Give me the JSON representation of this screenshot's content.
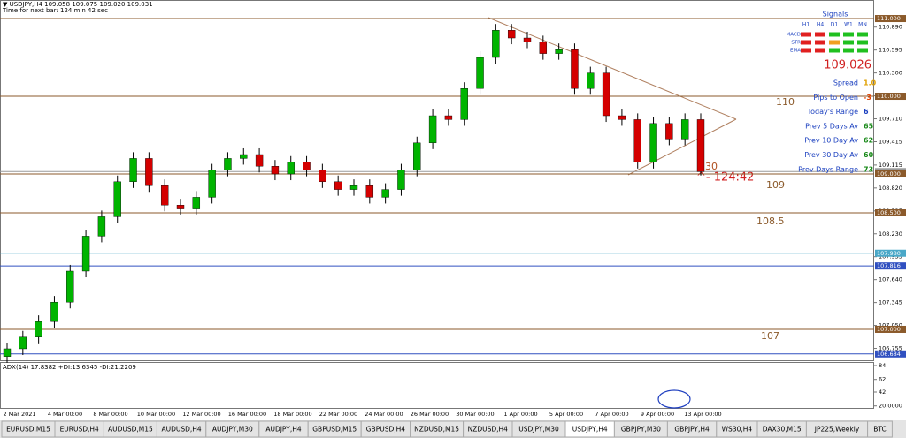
{
  "header": {
    "symbol_line": "▼ USDJPY,H4  109.058 109.075 109.020 109.031",
    "timer": "Time for next bar: 124 min 42 sec"
  },
  "chart": {
    "type": "candlestick",
    "ylim": [
      106.602,
      111.239
    ],
    "yticks": [
      {
        "value": 110.89,
        "label": "110.890"
      },
      {
        "value": 110.595,
        "label": "110.595"
      },
      {
        "value": 110.3,
        "label": "110.300"
      },
      {
        "value": 110.005,
        "label": "110.005"
      },
      {
        "value": 109.71,
        "label": "109.710"
      },
      {
        "value": 109.415,
        "label": "109.415"
      },
      {
        "value": 109.115,
        "label": "109.115"
      },
      {
        "value": 108.82,
        "label": "108.820"
      },
      {
        "value": 108.525,
        "label": "108.525"
      },
      {
        "value": 108.23,
        "label": "108.230"
      },
      {
        "value": 107.935,
        "label": "107.935"
      },
      {
        "value": 107.64,
        "label": "107.640"
      },
      {
        "value": 107.345,
        "label": "107.345"
      },
      {
        "value": 107.05,
        "label": "107.050"
      },
      {
        "value": 106.755,
        "label": "106.755"
      }
    ],
    "levels": [
      {
        "value": 111,
        "label": "111.000",
        "color": "#8b5a2b"
      },
      {
        "value": 110,
        "label": "110.000",
        "color": "#8b5a2b"
      },
      {
        "value": 109.031,
        "label": "109.031",
        "color": "#9a9a9a"
      },
      {
        "value": 109,
        "label": "109.000",
        "color": "#8b5a2b"
      },
      {
        "value": 108.5,
        "label": "108.500",
        "color": "#8b5a2b"
      },
      {
        "value": 107.98,
        "label": "107.980",
        "color": "#4aa8c8"
      },
      {
        "value": 107.816,
        "label": "107.816",
        "color": "#3050c0"
      },
      {
        "value": 107,
        "label": "107.000",
        "color": "#8b5a2b"
      },
      {
        "value": 106.684,
        "label": "106.684",
        "color": "#3050c0"
      }
    ],
    "level_notes": [
      "110",
      "109",
      "108.5",
      "107"
    ],
    "countdown": {
      "seconds": "30",
      "timer": "^- 124:42"
    },
    "up_color": "#00b400",
    "down_color": "#d40000",
    "candles": [
      [
        106.65,
        106.83,
        106.57,
        106.75
      ],
      [
        106.75,
        106.98,
        106.67,
        106.9
      ],
      [
        106.9,
        107.18,
        106.82,
        107.1
      ],
      [
        107.1,
        107.43,
        107.02,
        107.35
      ],
      [
        107.35,
        107.83,
        107.27,
        107.75
      ],
      [
        107.75,
        108.28,
        107.67,
        108.2
      ],
      [
        108.2,
        108.53,
        108.12,
        108.45
      ],
      [
        108.45,
        108.98,
        108.37,
        108.9
      ],
      [
        108.9,
        109.28,
        108.82,
        109.2
      ],
      [
        109.2,
        109.28,
        108.77,
        108.85
      ],
      [
        108.85,
        108.93,
        108.52,
        108.6
      ],
      [
        108.6,
        108.68,
        108.47,
        108.55
      ],
      [
        108.55,
        108.78,
        108.47,
        108.7
      ],
      [
        108.7,
        109.13,
        108.62,
        109.05
      ],
      [
        109.05,
        109.28,
        108.97,
        109.2
      ],
      [
        109.2,
        109.33,
        109.12,
        109.25
      ],
      [
        109.25,
        109.33,
        109.02,
        109.1
      ],
      [
        109.1,
        109.18,
        108.92,
        109
      ],
      [
        109,
        109.23,
        108.92,
        109.15
      ],
      [
        109.15,
        109.23,
        108.97,
        109.05
      ],
      [
        109.05,
        109.13,
        108.82,
        108.9
      ],
      [
        108.9,
        108.98,
        108.72,
        108.8
      ],
      [
        108.8,
        108.93,
        108.72,
        108.85
      ],
      [
        108.85,
        108.93,
        108.62,
        108.7
      ],
      [
        108.7,
        108.88,
        108.62,
        108.8
      ],
      [
        108.8,
        109.13,
        108.72,
        109.05
      ],
      [
        109.05,
        109.48,
        108.97,
        109.4
      ],
      [
        109.4,
        109.83,
        109.32,
        109.75
      ],
      [
        109.75,
        109.83,
        109.62,
        109.7
      ],
      [
        109.7,
        110.18,
        109.62,
        110.1
      ],
      [
        110.1,
        110.58,
        110.02,
        110.5
      ],
      [
        110.5,
        110.93,
        110.42,
        110.85
      ],
      [
        110.85,
        110.93,
        110.67,
        110.75
      ],
      [
        110.75,
        110.83,
        110.62,
        110.7
      ],
      [
        110.7,
        110.78,
        110.47,
        110.55
      ],
      [
        110.55,
        110.68,
        110.47,
        110.6
      ],
      [
        110.6,
        110.68,
        110.02,
        110.1
      ],
      [
        110.1,
        110.38,
        110.02,
        110.3
      ],
      [
        110.3,
        110.38,
        109.67,
        109.75
      ],
      [
        109.75,
        109.83,
        109.62,
        109.7
      ],
      [
        109.7,
        109.78,
        109.07,
        109.15
      ],
      [
        109.15,
        109.73,
        109.07,
        109.65
      ],
      [
        109.65,
        109.73,
        109.37,
        109.45
      ],
      [
        109.45,
        109.78,
        109.37,
        109.7
      ],
      [
        109.7,
        109.78,
        108.98,
        109.03
      ]
    ]
  },
  "signals": {
    "title": "Signals",
    "columns": [
      "H1",
      "H4",
      "D1",
      "W1",
      "MN"
    ],
    "rows": [
      {
        "label": "MACD",
        "colors": [
          "#e02020",
          "#e02020",
          "#20c020",
          "#20c020",
          "#20c020"
        ]
      },
      {
        "label": "STR",
        "colors": [
          "#e02020",
          "#e02020",
          "#f0a020",
          "#20c020",
          "#20c020"
        ]
      },
      {
        "label": "EMA",
        "colors": [
          "#e02020",
          "#e02020",
          "#20c020",
          "#20c020",
          "#20c020"
        ]
      }
    ],
    "price": "109.026",
    "stats": [
      {
        "label": "Spread",
        "value": "1.0",
        "color": "#e0a000"
      },
      {
        "label": "Pips to Open",
        "value": "-3",
        "color": "#e04000"
      },
      {
        "label": "Today's Range",
        "value": "6",
        "color": "#1a3fbf"
      },
      {
        "label": "Prev 5 Days Av",
        "value": "65",
        "color": "#1a8a1a"
      },
      {
        "label": "Prev 10 Day Av",
        "value": "62",
        "color": "#1a8a1a"
      },
      {
        "label": "Prev 30 Day Av",
        "value": "60",
        "color": "#1a8a1a"
      },
      {
        "label": "Prev Days Range",
        "value": "73",
        "color": "#1a8a1a"
      }
    ]
  },
  "adx": {
    "label": "ADX(14) 17.8382 +DI:13.6345 -DI:21.2209",
    "ylim": [
      16.8,
      89.6
    ],
    "yticks": [
      84,
      62,
      42,
      {
        "value": 20,
        "label": "20.0000"
      }
    ]
  },
  "dates": [
    "2 Mar 2021",
    "4 Mar 00:00",
    "8 Mar 00:00",
    "10 Mar 00:00",
    "12 Mar 00:00",
    "16 Mar 00:00",
    "18 Mar 00:00",
    "22 Mar 00:00",
    "24 Mar 00:00",
    "26 Mar 00:00",
    "30 Mar 00:00",
    "1 Apr 00:00",
    "5 Apr 00:00",
    "7 Apr 00:00",
    "9 Apr 00:00",
    "13 Apr 00:00"
  ],
  "tabs": {
    "items": [
      "EURUSD,M15",
      "EURUSD,H4",
      "AUDUSD,M15",
      "AUDUSD,H4",
      "AUDJPY,M30",
      "AUDJPY,H4",
      "GBPUSD,M15",
      "GBPUSD,H4",
      "NZDUSD,M15",
      "NZDUSD,H4",
      "USDJPY,M30",
      "USDJPY,H4",
      "GBPJPY,M30",
      "GBPJPY,H4",
      "WS30,H4",
      "DAX30,M15",
      "JP225,Weekly",
      "BTC"
    ],
    "active": 11
  }
}
